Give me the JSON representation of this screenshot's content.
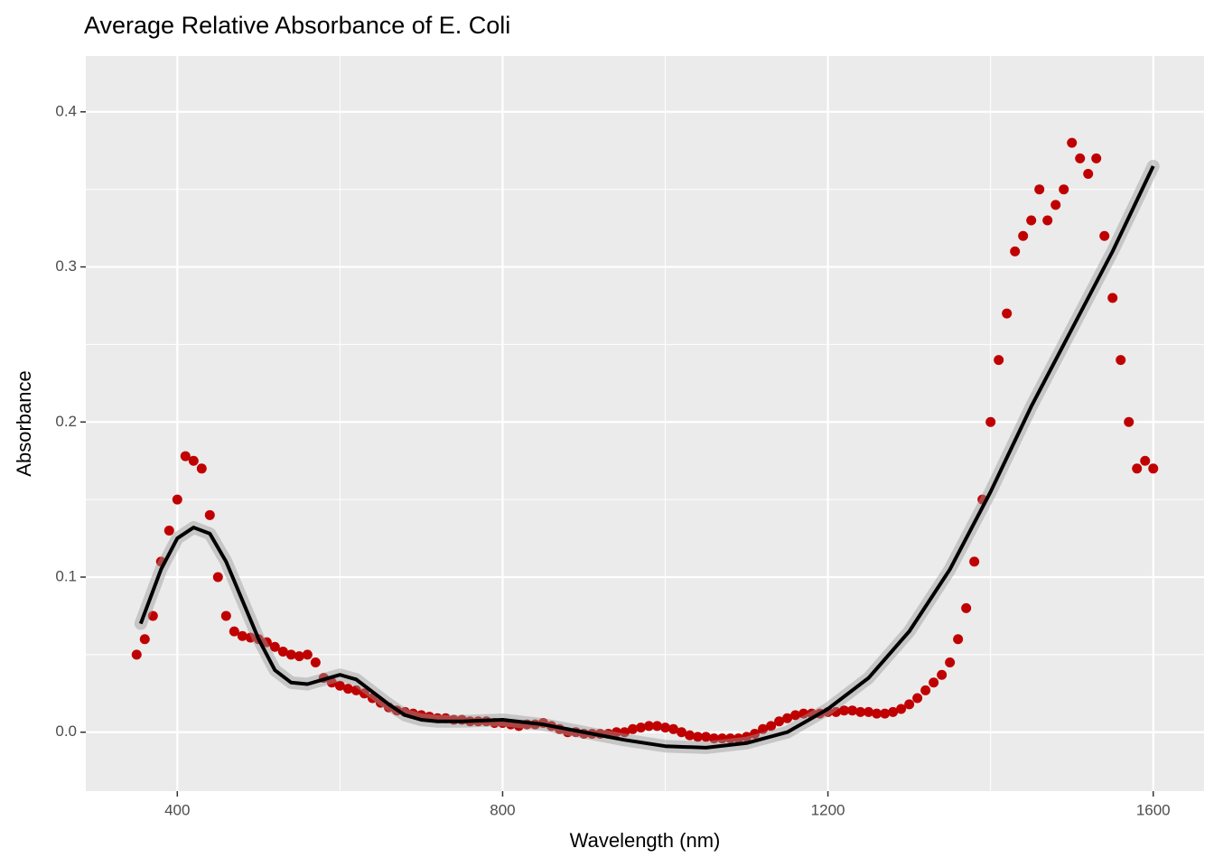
{
  "chart_data": {
    "type": "scatter",
    "title": "Average Relative Absorbance of E. Coli",
    "x_label": "Wavelength (nm)",
    "y_label": "Absorbance",
    "xlim": [
      287.5,
      1662.5
    ],
    "ylim": [
      -0.038,
      0.436
    ],
    "xticks": [
      400,
      800,
      1200,
      1600
    ],
    "yticks": [
      {
        "value": 0,
        "label": "0.0"
      },
      0.1,
      0.2,
      0.3,
      0.4
    ],
    "grid": true,
    "series": [
      {
        "name": "points",
        "type": "scatter",
        "color": "#c00000",
        "x": [
          350,
          360,
          370,
          380,
          390,
          400,
          410,
          420,
          430,
          440,
          450,
          460,
          470,
          480,
          490,
          500,
          510,
          520,
          530,
          540,
          550,
          560,
          570,
          580,
          590,
          600,
          610,
          620,
          630,
          640,
          650,
          660,
          670,
          680,
          690,
          700,
          710,
          720,
          730,
          740,
          750,
          760,
          770,
          780,
          790,
          800,
          810,
          820,
          830,
          840,
          850,
          860,
          870,
          880,
          890,
          900,
          910,
          920,
          930,
          940,
          950,
          960,
          970,
          980,
          990,
          1000,
          1010,
          1020,
          1030,
          1040,
          1050,
          1060,
          1070,
          1080,
          1090,
          1100,
          1110,
          1120,
          1130,
          1140,
          1150,
          1160,
          1170,
          1180,
          1190,
          1200,
          1210,
          1220,
          1230,
          1240,
          1250,
          1260,
          1270,
          1280,
          1290,
          1300,
          1310,
          1320,
          1330,
          1340,
          1350,
          1360,
          1370,
          1380,
          1390,
          1400,
          1410,
          1420,
          1430,
          1440,
          1450,
          1460,
          1470,
          1480,
          1490,
          1500,
          1510,
          1520,
          1530,
          1540,
          1550,
          1560,
          1570,
          1580,
          1590,
          1600
        ],
        "values": [
          0.05,
          0.06,
          0.075,
          0.11,
          0.13,
          0.15,
          0.178,
          0.175,
          0.17,
          0.14,
          0.1,
          0.075,
          0.065,
          0.062,
          0.061,
          0.06,
          0.058,
          0.055,
          0.052,
          0.05,
          0.049,
          0.05,
          0.045,
          0.035,
          0.032,
          0.03,
          0.028,
          0.027,
          0.025,
          0.022,
          0.019,
          0.016,
          0.014,
          0.013,
          0.012,
          0.011,
          0.01,
          0.009,
          0.009,
          0.008,
          0.008,
          0.007,
          0.007,
          0.007,
          0.006,
          0.006,
          0.005,
          0.004,
          0.005,
          0.005,
          0.006,
          0.004,
          0.002,
          0.0,
          0.0,
          -0.001,
          -0.001,
          -0.001,
          -0.001,
          0.0,
          0.0,
          0.002,
          0.003,
          0.004,
          0.004,
          0.003,
          0.002,
          0.0,
          -0.002,
          -0.003,
          -0.003,
          -0.004,
          -0.004,
          -0.004,
          -0.004,
          -0.003,
          -0.001,
          0.002,
          0.004,
          0.007,
          0.009,
          0.011,
          0.012,
          0.012,
          0.012,
          0.013,
          0.013,
          0.014,
          0.014,
          0.013,
          0.013,
          0.012,
          0.012,
          0.013,
          0.015,
          0.018,
          0.022,
          0.027,
          0.032,
          0.037,
          0.045,
          0.06,
          0.08,
          0.11,
          0.15,
          0.2,
          0.24,
          0.27,
          0.31,
          0.32,
          0.33,
          0.35,
          0.33,
          0.34,
          0.35,
          0.38,
          0.37,
          0.36,
          0.37,
          0.32,
          0.28,
          0.24,
          0.2,
          0.17,
          0.175,
          0.17
        ]
      },
      {
        "name": "smooth",
        "type": "line",
        "color": "#000000",
        "x": [
          355,
          380,
          400,
          420,
          440,
          460,
          480,
          500,
          520,
          540,
          560,
          580,
          600,
          620,
          640,
          660,
          680,
          700,
          720,
          750,
          800,
          850,
          900,
          950,
          1000,
          1050,
          1100,
          1150,
          1200,
          1250,
          1300,
          1350,
          1400,
          1450,
          1500,
          1550,
          1600
        ],
        "values": [
          0.07,
          0.105,
          0.125,
          0.132,
          0.128,
          0.11,
          0.085,
          0.06,
          0.04,
          0.032,
          0.031,
          0.034,
          0.037,
          0.034,
          0.026,
          0.018,
          0.011,
          0.008,
          0.007,
          0.007,
          0.008,
          0.005,
          0.0,
          -0.005,
          -0.009,
          -0.01,
          -0.007,
          0.0,
          0.015,
          0.035,
          0.065,
          0.105,
          0.155,
          0.21,
          0.26,
          0.31,
          0.365
        ]
      }
    ]
  }
}
